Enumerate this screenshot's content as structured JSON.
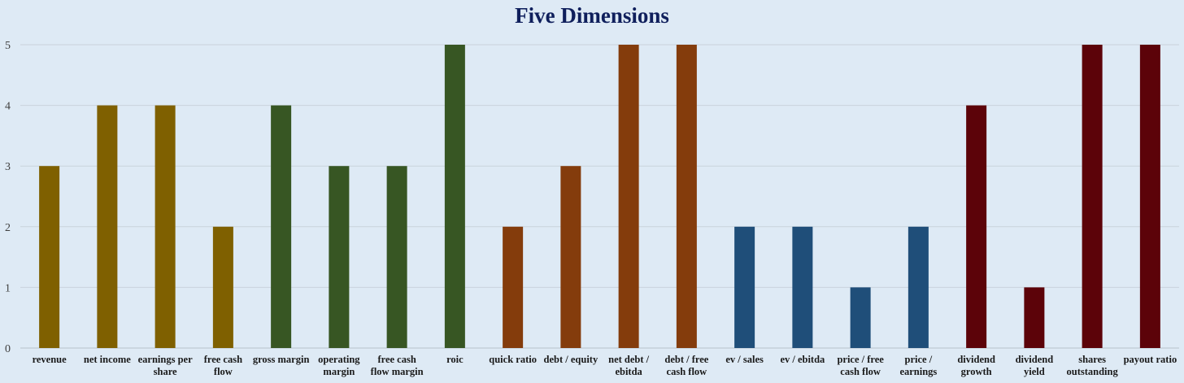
{
  "chart_data": {
    "type": "bar",
    "title": "Five Dimensions",
    "xlabel": "",
    "ylabel": "",
    "ylim": [
      0,
      5
    ],
    "yticks": [
      0,
      1,
      2,
      3,
      4,
      5
    ],
    "grid": true,
    "legend": "none",
    "categories": [
      [
        "revenue"
      ],
      [
        "net income"
      ],
      [
        "earnings per",
        "share"
      ],
      [
        "free cash",
        "flow"
      ],
      [
        "gross margin"
      ],
      [
        "operating",
        "margin"
      ],
      [
        "free cash",
        "flow margin"
      ],
      [
        "roic"
      ],
      [
        "quick ratio"
      ],
      [
        "debt / equity"
      ],
      [
        "net debt /",
        "ebitda"
      ],
      [
        "debt / free",
        "cash flow"
      ],
      [
        "ev / sales"
      ],
      [
        "ev / ebitda"
      ],
      [
        "price / free",
        "cash flow"
      ],
      [
        "price /",
        "earnings"
      ],
      [
        "dividend",
        "growth"
      ],
      [
        "dividend",
        "yield"
      ],
      [
        "shares",
        "outstanding"
      ],
      [
        "payout ratio"
      ]
    ],
    "values": [
      3,
      4,
      4,
      2,
      4,
      3,
      3,
      5,
      2,
      3,
      5,
      5,
      2,
      2,
      1,
      2,
      4,
      1,
      5,
      5
    ],
    "colors": [
      "#7f6000",
      "#7f6000",
      "#7f6000",
      "#7f6000",
      "#375623",
      "#375623",
      "#375623",
      "#375623",
      "#843c0c",
      "#843c0c",
      "#843c0c",
      "#843c0c",
      "#1f4e79",
      "#1f4e79",
      "#1f4e79",
      "#1f4e79",
      "#5c0309",
      "#5c0309",
      "#5c0309",
      "#5c0309"
    ]
  }
}
